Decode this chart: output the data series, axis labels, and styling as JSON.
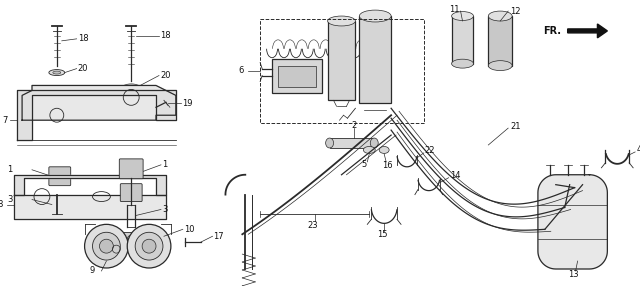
{
  "bg_color": "#ffffff",
  "line_color": "#2a2a2a",
  "label_color": "#111111",
  "figsize": [
    6.4,
    2.87
  ],
  "dpi": 100,
  "xlim": [
    0,
    10.5
  ],
  "ylim": [
    0,
    9.0
  ]
}
